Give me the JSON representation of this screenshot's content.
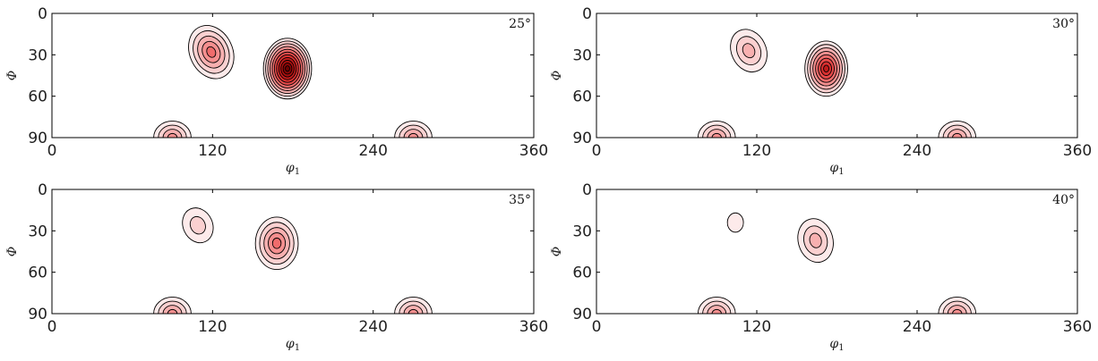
{
  "colors": {
    "contour_line": "#000000",
    "fill_scale": [
      "#fdeaea",
      "#fbd0d0",
      "#f8b0b0",
      "#f58f8f",
      "#f06c6c",
      "#e84a4a",
      "#d83030",
      "#c21b1b",
      "#a90f0f",
      "#8a0707",
      "#6e0303"
    ]
  },
  "chart_data": [
    {
      "type": "contour",
      "angle_label": "25°",
      "xlabel": "φ1",
      "ylabel": "Φ",
      "xlim": [
        0,
        360
      ],
      "ylim": [
        0,
        90
      ],
      "y_inverted": true,
      "xticks": [
        "0",
        "120",
        "240",
        "360"
      ],
      "yticks": [
        "0",
        "30",
        "60",
        "90"
      ],
      "peaks": [
        {
          "phi1": 119,
          "Phi": 28,
          "spread_phi1": 16,
          "spread_Phi": 20,
          "levels": 5,
          "tilt_deg": -25
        },
        {
          "phi1": 176,
          "Phi": 40,
          "spread_phi1": 18,
          "spread_Phi": 22,
          "levels": 11,
          "tilt_deg": 0
        },
        {
          "phi1": 90,
          "Phi": 90,
          "spread_phi1": 14,
          "spread_Phi": 12,
          "levels": 4,
          "tilt_deg": 0
        },
        {
          "phi1": 270,
          "Phi": 90,
          "spread_phi1": 14,
          "spread_Phi": 12,
          "levels": 4,
          "tilt_deg": 0
        }
      ]
    },
    {
      "type": "contour",
      "angle_label": "30°",
      "xlabel": "φ1",
      "ylabel": "Φ",
      "xlim": [
        0,
        360
      ],
      "ylim": [
        0,
        90
      ],
      "y_inverted": true,
      "xticks": [
        "0",
        "120",
        "240",
        "360"
      ],
      "yticks": [
        "0",
        "30",
        "60",
        "90"
      ],
      "peaks": [
        {
          "phi1": 114,
          "Phi": 27,
          "spread_phi1": 13,
          "spread_Phi": 16,
          "levels": 3,
          "tilt_deg": -25
        },
        {
          "phi1": 172,
          "Phi": 40,
          "spread_phi1": 16,
          "spread_Phi": 20,
          "levels": 8,
          "tilt_deg": 0
        },
        {
          "phi1": 90,
          "Phi": 90,
          "spread_phi1": 14,
          "spread_Phi": 12,
          "levels": 4,
          "tilt_deg": 0
        },
        {
          "phi1": 270,
          "Phi": 90,
          "spread_phi1": 14,
          "spread_Phi": 12,
          "levels": 4,
          "tilt_deg": 0
        }
      ]
    },
    {
      "type": "contour",
      "angle_label": "35°",
      "xlabel": "φ1",
      "ylabel": "Φ",
      "xlim": [
        0,
        360
      ],
      "ylim": [
        0,
        90
      ],
      "y_inverted": true,
      "xticks": [
        "0",
        "120",
        "240",
        "360"
      ],
      "yticks": [
        "0",
        "30",
        "60",
        "90"
      ],
      "peaks": [
        {
          "phi1": 109,
          "Phi": 26,
          "spread_phi1": 11,
          "spread_Phi": 13,
          "levels": 2,
          "tilt_deg": -25
        },
        {
          "phi1": 168,
          "Phi": 39,
          "spread_phi1": 16,
          "spread_Phi": 19,
          "levels": 5,
          "tilt_deg": 0
        },
        {
          "phi1": 90,
          "Phi": 90,
          "spread_phi1": 14,
          "spread_Phi": 12,
          "levels": 4,
          "tilt_deg": 0
        },
        {
          "phi1": 270,
          "Phi": 90,
          "spread_phi1": 14,
          "spread_Phi": 12,
          "levels": 4,
          "tilt_deg": 0
        }
      ]
    },
    {
      "type": "contour",
      "angle_label": "40°",
      "xlabel": "φ1",
      "ylabel": "Φ",
      "xlim": [
        0,
        360
      ],
      "ylim": [
        0,
        90
      ],
      "y_inverted": true,
      "xticks": [
        "0",
        "120",
        "240",
        "360"
      ],
      "yticks": [
        "0",
        "30",
        "60",
        "90"
      ],
      "peaks": [
        {
          "phi1": 104,
          "Phi": 24,
          "spread_phi1": 6,
          "spread_Phi": 7,
          "levels": 1,
          "tilt_deg": 0
        },
        {
          "phi1": 164,
          "Phi": 37,
          "spread_phi1": 13,
          "spread_Phi": 16,
          "levels": 3,
          "tilt_deg": -15
        },
        {
          "phi1": 90,
          "Phi": 90,
          "spread_phi1": 14,
          "spread_Phi": 12,
          "levels": 4,
          "tilt_deg": 0
        },
        {
          "phi1": 270,
          "Phi": 90,
          "spread_phi1": 14,
          "spread_Phi": 12,
          "levels": 4,
          "tilt_deg": 0
        }
      ]
    }
  ]
}
